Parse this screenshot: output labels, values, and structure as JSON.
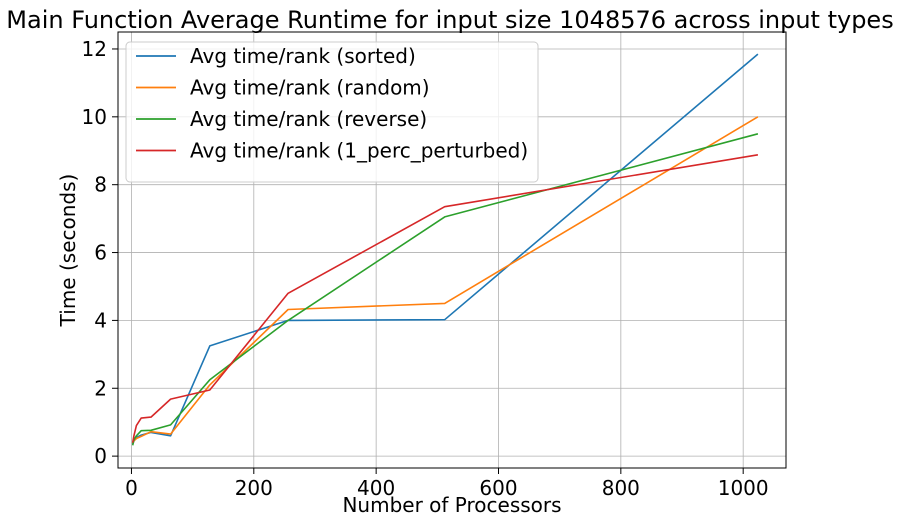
{
  "chart_data": {
    "type": "line",
    "title": "Main Function Average Runtime for input size 1048576 across input types",
    "xlabel": "Number of Processors",
    "ylabel": "Time (seconds)",
    "xlim": [
      -22,
      1070
    ],
    "ylim": [
      -0.35,
      12.5
    ],
    "xticks": [
      0,
      200,
      400,
      600,
      800,
      1000
    ],
    "yticks": [
      0,
      2,
      4,
      6,
      8,
      10,
      12
    ],
    "grid": true,
    "legend_position": "upper-left",
    "x": [
      2,
      4,
      8,
      16,
      32,
      64,
      128,
      256,
      512,
      1024
    ],
    "series": [
      {
        "name": "Avg time/rank (sorted)",
        "color": "#1f77b4",
        "values": [
          0.35,
          0.45,
          0.55,
          0.62,
          0.7,
          0.6,
          3.25,
          4.0,
          4.02,
          11.85
        ]
      },
      {
        "name": "Avg time/rank (random)",
        "color": "#ff7f0e",
        "values": [
          0.38,
          0.45,
          0.52,
          0.58,
          0.72,
          0.65,
          2.1,
          4.32,
          4.5,
          10.0
        ]
      },
      {
        "name": "Avg time/rank (reverse)",
        "color": "#2ca02c",
        "values": [
          0.32,
          0.48,
          0.6,
          0.75,
          0.76,
          0.92,
          2.25,
          4.0,
          7.05,
          9.5
        ]
      },
      {
        "name": "Avg time/rank (1_perc_perturbed)",
        "color": "#d62728",
        "values": [
          0.4,
          0.6,
          0.9,
          1.12,
          1.15,
          1.68,
          1.95,
          4.8,
          7.35,
          8.88
        ]
      }
    ]
  }
}
